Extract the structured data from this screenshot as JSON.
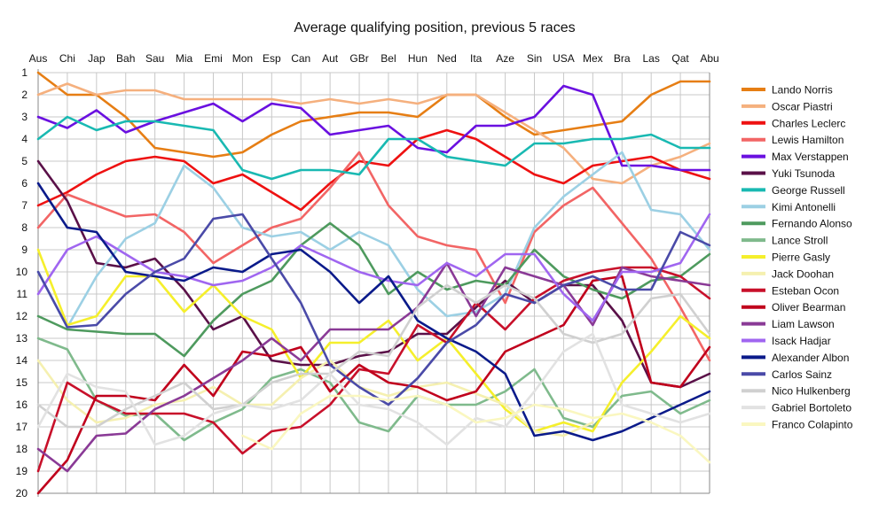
{
  "chart_data": {
    "type": "line",
    "title": "Average qualifying position, previous 5 races",
    "xlabel": "",
    "ylabel": "",
    "ylim": [
      1,
      20
    ],
    "y_inverted": true,
    "x_axis_position": "top",
    "legend_position": "right",
    "grid": true,
    "categories": [
      "Aus",
      "Chi",
      "Jap",
      "Bah",
      "Sau",
      "Mia",
      "Emi",
      "Mon",
      "Esp",
      "Can",
      "Aut",
      "GBr",
      "Bel",
      "Hun",
      "Ned",
      "Ita",
      "Aze",
      "Sin",
      "USA",
      "Mex",
      "Bra",
      "Las",
      "Qat",
      "Abu"
    ],
    "y_ticks": [
      1,
      2,
      3,
      4,
      5,
      6,
      7,
      8,
      9,
      10,
      11,
      12,
      13,
      14,
      15,
      16,
      17,
      18,
      19,
      20
    ],
    "series": [
      {
        "name": "Lando Norris",
        "color": "#e67e14",
        "values": [
          1,
          2,
          2,
          3,
          4.4,
          4.6,
          4.8,
          4.6,
          3.8,
          3.2,
          3,
          2.8,
          2.8,
          3,
          2,
          2,
          3,
          3.8,
          3.6,
          3.4,
          3.2,
          2,
          1.4,
          1.4
        ]
      },
      {
        "name": "Oscar Piastri",
        "color": "#f5b07e",
        "values": [
          2,
          1.5,
          2,
          1.8,
          1.8,
          2.2,
          2.2,
          2.2,
          2.2,
          2.4,
          2.2,
          2.4,
          2.2,
          2.4,
          2,
          2,
          2.8,
          3.6,
          4.4,
          5.8,
          6,
          5.2,
          4.8,
          4.2
        ]
      },
      {
        "name": "Charles Leclerc",
        "color": "#ee1111",
        "values": [
          7,
          6.4,
          5.6,
          5,
          4.8,
          5,
          6,
          5.6,
          6.4,
          7.2,
          6,
          5,
          5.2,
          4,
          3.6,
          4,
          4.8,
          5.6,
          6,
          5.2,
          5,
          4.8,
          5.4,
          5.8
        ]
      },
      {
        "name": "Lewis Hamilton",
        "color": "#f26565",
        "values": [
          8,
          6.5,
          7,
          7.5,
          7.4,
          8.2,
          9.6,
          8.8,
          8,
          7.6,
          6.2,
          4.6,
          7,
          8.4,
          8.8,
          9,
          11.4,
          8.2,
          7,
          6.2,
          7.8,
          9.4,
          11.6,
          14
        ]
      },
      {
        "name": "Max Verstappen",
        "color": "#6a10e0",
        "values": [
          3,
          3.5,
          2.7,
          3.7,
          3.2,
          2.8,
          2.4,
          3.2,
          2.4,
          2.6,
          3.8,
          3.6,
          3.4,
          4.4,
          4.6,
          3.4,
          3.4,
          3,
          1.6,
          2,
          5.2,
          5.2,
          5.4,
          5.4
        ]
      },
      {
        "name": "Yuki Tsunoda",
        "color": "#5a1048",
        "values": [
          5,
          6.8,
          9.6,
          9.8,
          9.4,
          10.8,
          12.6,
          12,
          14,
          14.2,
          14.2,
          13.8,
          13.6,
          12.8,
          12.8,
          11.6,
          10.4,
          11.4,
          10.6,
          10.6,
          12.2,
          15,
          15.2,
          14.6
        ]
      },
      {
        "name": "George Russell",
        "color": "#19b9b2",
        "values": [
          4,
          3,
          3.6,
          3.2,
          3.2,
          3.4,
          3.6,
          5.4,
          5.8,
          5.4,
          5.4,
          5.6,
          4,
          4,
          4.8,
          5,
          5.2,
          4.2,
          4.2,
          4,
          4,
          3.8,
          4.4,
          4.4
        ]
      },
      {
        "name": "Kimi Antonelli",
        "color": "#9cd0e4",
        "values": [
          10,
          12.5,
          10.2,
          8.5,
          7.8,
          5.2,
          6.2,
          8,
          8.4,
          8.2,
          9,
          8.2,
          8.8,
          10.8,
          12,
          11.8,
          11,
          8,
          6.6,
          5.6,
          4.6,
          7.2,
          7.4,
          9
        ]
      },
      {
        "name": "Fernando Alonso",
        "color": "#4e9a5e",
        "values": [
          12,
          12.6,
          12.7,
          12.8,
          12.8,
          13.8,
          12.2,
          11,
          10.4,
          8.8,
          7.8,
          8.8,
          11,
          10,
          10.8,
          10.4,
          10.6,
          9,
          10.2,
          10.8,
          11.2,
          10.4,
          10.2,
          9.2
        ]
      },
      {
        "name": "Lance Stroll",
        "color": "#7fba8c",
        "values": [
          13,
          13.5,
          15.8,
          16.5,
          16.4,
          17.6,
          16.8,
          16.2,
          14.8,
          14.4,
          15,
          16.8,
          17.2,
          15.6,
          16,
          16,
          15.4,
          14.4,
          16.6,
          17,
          15.6,
          15.4,
          16.4,
          15.8
        ]
      },
      {
        "name": "Pierre Gasly",
        "color": "#f5ef2c",
        "values": [
          9,
          12.4,
          12,
          10.2,
          10.2,
          11.8,
          10.6,
          12,
          12.6,
          14.8,
          13.2,
          13.2,
          12.2,
          14,
          13,
          14.6,
          16.2,
          17.2,
          16.8,
          17.2,
          15,
          13.6,
          12,
          13
        ]
      },
      {
        "name": "Jack Doohan",
        "color": "#f5f0b0",
        "values": [
          14,
          15.8,
          16.8,
          16.6,
          16,
          15.8,
          15.2,
          16,
          16,
          14.8,
          14,
          15.2,
          15.6,
          15.2,
          15,
          15.5,
          16,
          17.2,
          17.4,
          16.8,
          null,
          null,
          null,
          null
        ]
      },
      {
        "name": "Esteban Ocon",
        "color": "#c8102a",
        "values": [
          19,
          15,
          15.8,
          16.4,
          16.4,
          16.4,
          16.8,
          18.2,
          17.2,
          17,
          16,
          14.4,
          14.6,
          12.4,
          13.2,
          11.4,
          12.6,
          11.2,
          10.4,
          10,
          9.8,
          9.8,
          10.2,
          11.2
        ]
      },
      {
        "name": "Oliver Bearman",
        "color": "#c0001c",
        "values": [
          20,
          18.5,
          15.6,
          15.6,
          15.8,
          14.2,
          15.6,
          13.6,
          13.8,
          13.4,
          15.4,
          14.2,
          15,
          15.2,
          15.8,
          15.4,
          13.6,
          13,
          12.4,
          10.4,
          10.2,
          15,
          15.2,
          13.4
        ]
      },
      {
        "name": "Liam Lawson",
        "color": "#8a3a96",
        "values": [
          18,
          19,
          17.4,
          17.3,
          16.2,
          15.6,
          14.8,
          14,
          13,
          14,
          12.6,
          12.6,
          12.6,
          11.6,
          9.6,
          12,
          9.8,
          10.2,
          10.6,
          12.4,
          9.8,
          10.2,
          10.4,
          10.6
        ]
      },
      {
        "name": "Isack Hadjar",
        "color": "#a066f0",
        "values": [
          11,
          9,
          8.4,
          9.2,
          10,
          10.2,
          10.6,
          10.4,
          9.8,
          8.8,
          9.4,
          10,
          10.4,
          10.6,
          9.6,
          10.2,
          9.2,
          9.2,
          11,
          12.2,
          10,
          10,
          9.6,
          7.4
        ]
      },
      {
        "name": "Alexander Albon",
        "color": "#0a1a8a",
        "values": [
          6,
          8,
          8.2,
          10,
          10.2,
          10.4,
          9.8,
          10,
          9.2,
          9,
          10,
          11.4,
          10.2,
          12.2,
          13,
          13.6,
          14.6,
          17.4,
          17.2,
          17.6,
          17.2,
          16.6,
          16,
          15.4
        ]
      },
      {
        "name": "Carlos Sainz",
        "color": "#4a4aa8",
        "values": [
          10,
          12.5,
          12.4,
          11,
          10,
          9.4,
          7.6,
          7.4,
          9.4,
          11.4,
          14.2,
          15.2,
          16,
          14.8,
          13.2,
          12.4,
          11,
          11.4,
          10.6,
          10.2,
          10.8,
          10.8,
          8.2,
          8.8
        ]
      },
      {
        "name": "Nico Hulkenberg",
        "color": "#d0d0d0",
        "values": [
          16,
          17,
          17,
          16.2,
          15.6,
          15,
          16.2,
          16,
          15,
          14.6,
          14.6,
          13.6,
          13.8,
          11.6,
          10.6,
          11.4,
          10.6,
          11.2,
          12.8,
          13.2,
          12.8,
          11.2,
          11,
          12.8
        ]
      },
      {
        "name": "Gabriel Bortoleto",
        "color": "#e2e2e2",
        "values": [
          17,
          14.6,
          15.2,
          15.4,
          17.8,
          17.4,
          16.4,
          16,
          16.2,
          15.8,
          14.6,
          16,
          16.2,
          16.8,
          17.8,
          16.6,
          17,
          15.4,
          13.6,
          12.8,
          16,
          16.4,
          16.8,
          16.4
        ]
      },
      {
        "name": "Franco Colapinto",
        "color": "#faf7c0",
        "values": [
          null,
          null,
          null,
          null,
          null,
          null,
          null,
          17.4,
          18,
          16.4,
          15.6,
          15.6,
          15.8,
          15.6,
          16,
          16.8,
          16.6,
          16,
          16.2,
          16.6,
          16.4,
          16.8,
          17.4,
          18.6
        ]
      }
    ]
  }
}
